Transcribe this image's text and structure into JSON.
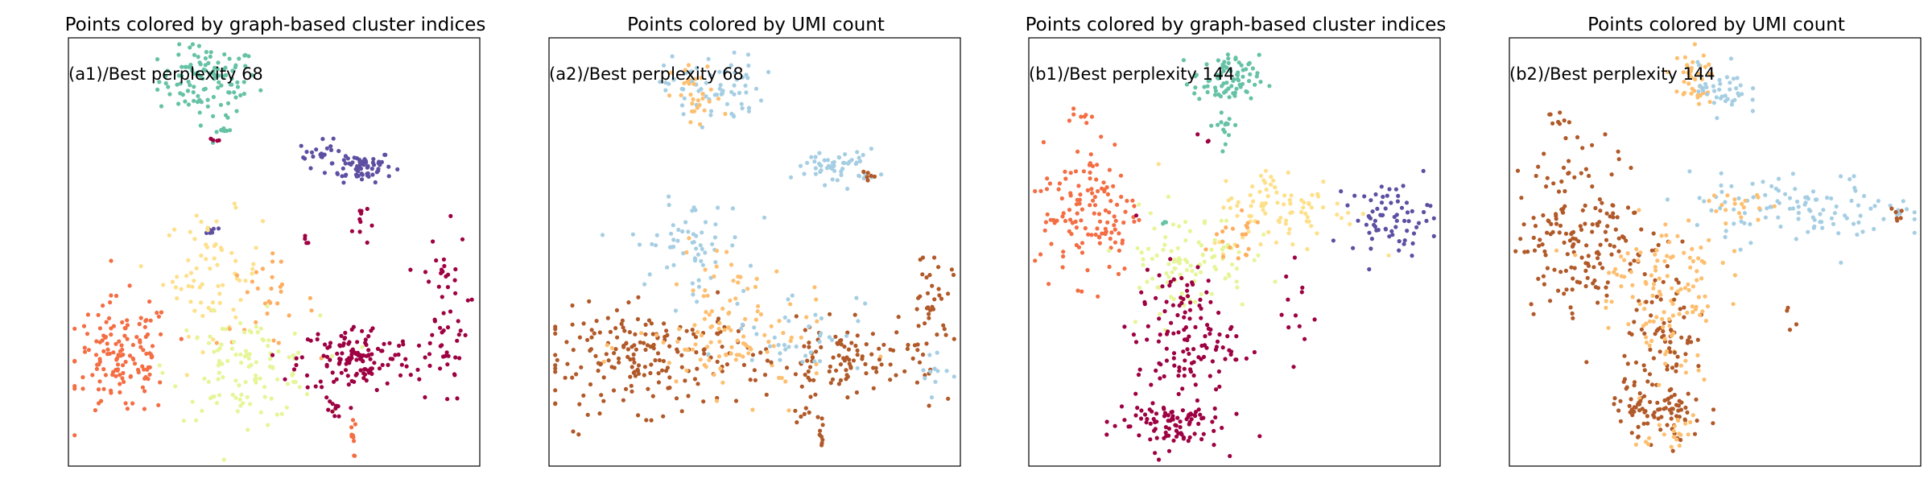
{
  "figure": {
    "panels": [
      {
        "title": "Points colored by graph-based cluster indices",
        "annotation": "(a1)/Best perplexity 68"
      },
      {
        "title": "Points colored by UMI count",
        "annotation": "(a2)/Best perplexity 68"
      },
      {
        "title": "Points colored by graph-based cluster indices",
        "annotation": "(b1)/Best perplexity 144"
      },
      {
        "title": "Points colored by UMI count",
        "annotation": "(b2)/Best perplexity 144"
      }
    ]
  },
  "chart_data": [
    {
      "type": "scatter",
      "title": "Points colored by graph-based cluster indices",
      "annotation": "(a1)/Best perplexity 68",
      "xlabel": "",
      "ylabel": "",
      "xlim": [
        0,
        100
      ],
      "ylim": [
        0,
        100
      ],
      "grid": false,
      "ticks": false,
      "colormap": "Spectral",
      "color_by": "cluster index",
      "series": [
        {
          "color": "#66c2a5",
          "center": [
            34,
            90
          ],
          "spread": [
            6,
            4
          ],
          "count": 110
        },
        {
          "color": "#66c2a5",
          "center": [
            37,
            79
          ],
          "spread": [
            1.2,
            2.5
          ],
          "count": 10
        },
        {
          "color": "#9e0142",
          "center": [
            36,
            76
          ],
          "spread": [
            0.6,
            0.4
          ],
          "count": 4
        },
        {
          "color": "#5e4fa2",
          "center": [
            71,
            70
          ],
          "spread": [
            4,
            1.8
          ],
          "count": 65
        },
        {
          "color": "#5e4fa2",
          "center": [
            62,
            73
          ],
          "spread": [
            3,
            1.5
          ],
          "count": 22
        },
        {
          "color": "#5e4fa2",
          "center": [
            34,
            55
          ],
          "spread": [
            1.2,
            0.6
          ],
          "count": 8
        },
        {
          "color": "#9e0142",
          "center": [
            71,
            57
          ],
          "spread": [
            1,
            3
          ],
          "count": 10
        },
        {
          "color": "#9e0142",
          "center": [
            58,
            53
          ],
          "spread": [
            0.6,
            1
          ],
          "count": 4
        },
        {
          "color": "#fee08b",
          "center": [
            35,
            45
          ],
          "spread": [
            6,
            7
          ],
          "count": 70
        },
        {
          "color": "#fdae61",
          "center": [
            48,
            38
          ],
          "spread": [
            6,
            5
          ],
          "count": 30
        },
        {
          "color": "#f46d43",
          "center": [
            13,
            25
          ],
          "spread": [
            6,
            7
          ],
          "count": 140
        },
        {
          "color": "#e6f598",
          "center": [
            43,
            23
          ],
          "spread": [
            9,
            6
          ],
          "count": 110
        },
        {
          "color": "#9e0142",
          "center": [
            70,
            25
          ],
          "spread": [
            7,
            4
          ],
          "count": 130
        },
        {
          "color": "#9e0142",
          "center": [
            91,
            35
          ],
          "spread": [
            3,
            10
          ],
          "count": 55
        },
        {
          "color": "#9e0142",
          "center": [
            64,
            13
          ],
          "spread": [
            1,
            2
          ],
          "count": 10
        },
        {
          "color": "#f46d43",
          "center": [
            69,
            7
          ],
          "spread": [
            0.4,
            2.5
          ],
          "count": 10
        }
      ]
    },
    {
      "type": "scatter",
      "title": "Points colored by UMI count",
      "annotation": "(a2)/Best perplexity 68",
      "xlabel": "",
      "ylabel": "",
      "xlim": [
        0,
        100
      ],
      "ylim": [
        0,
        100
      ],
      "grid": false,
      "ticks": false,
      "colormap": "Paired",
      "color_by": "UMI count",
      "series": [
        {
          "color": "#a6cee3",
          "center": [
            40,
            88
          ],
          "spread": [
            6,
            4
          ],
          "count": 70
        },
        {
          "color": "#fdbf6f",
          "center": [
            36,
            86
          ],
          "spread": [
            3,
            4
          ],
          "count": 30
        },
        {
          "color": "#a6cee3",
          "center": [
            70,
            70
          ],
          "spread": [
            5,
            2
          ],
          "count": 55
        },
        {
          "color": "#b15928",
          "center": [
            78,
            68
          ],
          "spread": [
            0.8,
            0.6
          ],
          "count": 6
        },
        {
          "color": "#a6cee3",
          "center": [
            34,
            52
          ],
          "spread": [
            7,
            5
          ],
          "count": 60
        },
        {
          "color": "#fdbf6f",
          "center": [
            42,
            42
          ],
          "spread": [
            5,
            5
          ],
          "count": 25
        },
        {
          "color": "#b15928",
          "center": [
            25,
            25
          ],
          "spread": [
            14,
            6
          ],
          "count": 200
        },
        {
          "color": "#fdbf6f",
          "center": [
            45,
            28
          ],
          "spread": [
            12,
            6
          ],
          "count": 90
        },
        {
          "color": "#b15928",
          "center": [
            72,
            25
          ],
          "spread": [
            8,
            4
          ],
          "count": 90
        },
        {
          "color": "#a6cee3",
          "center": [
            60,
            32
          ],
          "spread": [
            8,
            5
          ],
          "count": 40
        },
        {
          "color": "#b15928",
          "center": [
            92,
            35
          ],
          "spread": [
            3,
            9
          ],
          "count": 45
        },
        {
          "color": "#a6cee3",
          "center": [
            93,
            22
          ],
          "spread": [
            2,
            4
          ],
          "count": 12
        },
        {
          "color": "#b15928",
          "center": [
            66,
            7
          ],
          "spread": [
            0.5,
            2
          ],
          "count": 8
        },
        {
          "color": "#b15928",
          "center": [
            62,
            13
          ],
          "spread": [
            1.2,
            1.5
          ],
          "count": 8
        }
      ]
    },
    {
      "type": "scatter",
      "title": "Points colored by graph-based cluster indices",
      "annotation": "(b1)/Best perplexity 144",
      "xlabel": "",
      "ylabel": "",
      "xlim": [
        0,
        100
      ],
      "ylim": [
        0,
        100
      ],
      "grid": false,
      "ticks": false,
      "colormap": "Spectral",
      "color_by": "cluster index",
      "series": [
        {
          "color": "#66c2a5",
          "center": [
            48,
            90
          ],
          "spread": [
            4,
            3
          ],
          "count": 80
        },
        {
          "color": "#66c2a5",
          "center": [
            48,
            80
          ],
          "spread": [
            1.5,
            3
          ],
          "count": 15
        },
        {
          "color": "#9e0142",
          "center": [
            43,
            76
          ],
          "spread": [
            0.8,
            0.8
          ],
          "count": 3
        },
        {
          "color": "#f46d43",
          "center": [
            12,
            82
          ],
          "spread": [
            1.5,
            1
          ],
          "count": 8
        },
        {
          "color": "#f46d43",
          "center": [
            15,
            60
          ],
          "spread": [
            6,
            8
          ],
          "count": 130
        },
        {
          "color": "#fee08b",
          "center": [
            62,
            60
          ],
          "spread": [
            9,
            5
          ],
          "count": 90
        },
        {
          "color": "#e6f598",
          "center": [
            38,
            48
          ],
          "spread": [
            8,
            6
          ],
          "count": 100
        },
        {
          "color": "#5e4fa2",
          "center": [
            88,
            58
          ],
          "spread": [
            5,
            4
          ],
          "count": 70
        },
        {
          "color": "#9e0142",
          "center": [
            38,
            30
          ],
          "spread": [
            6,
            8
          ],
          "count": 130
        },
        {
          "color": "#9e0142",
          "center": [
            33,
            10
          ],
          "spread": [
            7,
            3
          ],
          "count": 90
        },
        {
          "color": "#9e0142",
          "center": [
            66,
            36
          ],
          "spread": [
            2,
            6
          ],
          "count": 12
        },
        {
          "color": "#66c2a5",
          "center": [
            33,
            57
          ],
          "spread": [
            0.6,
            0.4
          ],
          "count": 3
        },
        {
          "color": "#fdae61",
          "center": [
            50,
            52
          ],
          "spread": [
            4,
            4
          ],
          "count": 20
        }
      ]
    },
    {
      "type": "scatter",
      "title": "Points colored by UMI count",
      "annotation": "(b2)/Best perplexity 144",
      "xlabel": "",
      "ylabel": "",
      "xlim": [
        0,
        100
      ],
      "ylim": [
        0,
        100
      ],
      "grid": false,
      "ticks": false,
      "colormap": "Paired",
      "color_by": "UMI count",
      "series": [
        {
          "color": "#fdbf6f",
          "center": [
            44,
            90
          ],
          "spread": [
            3,
            3
          ],
          "count": 40
        },
        {
          "color": "#a6cee3",
          "center": [
            52,
            88
          ],
          "spread": [
            3,
            3
          ],
          "count": 40
        },
        {
          "color": "#b15928",
          "center": [
            12,
            81
          ],
          "spread": [
            1.5,
            1
          ],
          "count": 8
        },
        {
          "color": "#b15928",
          "center": [
            18,
            55
          ],
          "spread": [
            8,
            10
          ],
          "count": 170
        },
        {
          "color": "#fdbf6f",
          "center": [
            35,
            45
          ],
          "spread": [
            8,
            6
          ],
          "count": 80
        },
        {
          "color": "#a6cee3",
          "center": [
            72,
            60
          ],
          "spread": [
            14,
            4
          ],
          "count": 110
        },
        {
          "color": "#fdbf6f",
          "center": [
            55,
            60
          ],
          "spread": [
            4,
            3
          ],
          "count": 20
        },
        {
          "color": "#b15928",
          "center": [
            38,
            28
          ],
          "spread": [
            5,
            9
          ],
          "count": 90
        },
        {
          "color": "#fdbf6f",
          "center": [
            40,
            30
          ],
          "spread": [
            5,
            8
          ],
          "count": 40
        },
        {
          "color": "#b15928",
          "center": [
            36,
            12
          ],
          "spread": [
            6,
            3
          ],
          "count": 70
        },
        {
          "color": "#fdbf6f",
          "center": [
            38,
            8
          ],
          "spread": [
            5,
            2
          ],
          "count": 20
        },
        {
          "color": "#b15928",
          "center": [
            94,
            58
          ],
          "spread": [
            1,
            1
          ],
          "count": 6
        },
        {
          "color": "#b15928",
          "center": [
            68,
            35
          ],
          "spread": [
            1,
            1.5
          ],
          "count": 4
        }
      ]
    }
  ]
}
